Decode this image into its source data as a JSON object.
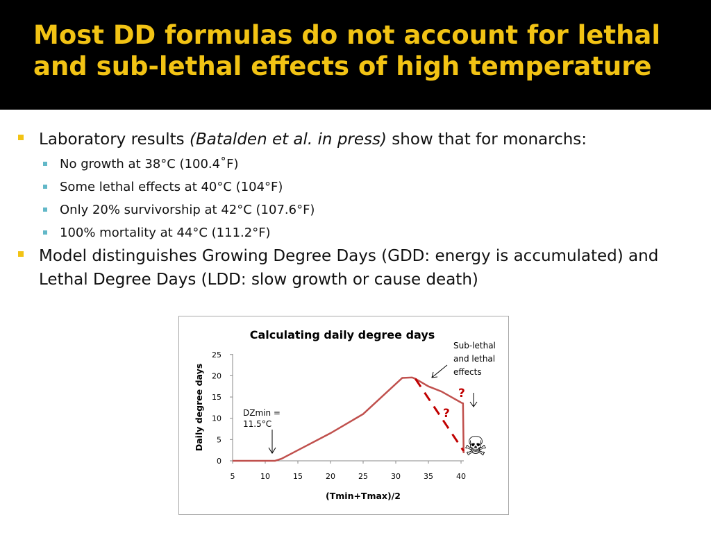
{
  "slide": {
    "title": "Most DD formulas do not account for lethal and sub-lethal effects of high temperature",
    "bullets": [
      {
        "pre": "Laboratory results ",
        "ital": "(Batalden et al. in press)",
        "post": " show that for monarchs:"
      },
      {
        "text": "Model distinguishes Growing Degree Days (GDD: energy is accumulated) and Lethal Degree Days (LDD: slow growth or cause death)"
      }
    ],
    "subbullets": [
      "No growth at 38°C (100.4˚F)",
      "Some lethal effects at 40°C (104°F)",
      "Only 20% survivorship at 42°C (107.6°F)",
      "100% mortality at 44°C (111.2°F)"
    ]
  },
  "chart_data": {
    "type": "line",
    "title": "Calculating daily degree days",
    "xlabel": "(Tmin+Tmax)/2",
    "ylabel": "Daily degree days",
    "xlim": [
      5,
      42
    ],
    "ylim": [
      0,
      25
    ],
    "xticks": [
      5,
      10,
      15,
      20,
      25,
      30,
      35,
      40
    ],
    "yticks": [
      0,
      5,
      10,
      15,
      20,
      25
    ],
    "grid": false,
    "series": [
      {
        "color": "#c0504d",
        "style": "solid",
        "points": [
          [
            5,
            0
          ],
          [
            11.5,
            0
          ],
          [
            12.5,
            0.5
          ],
          [
            15,
            2.5
          ],
          [
            20,
            6.5
          ],
          [
            25,
            11
          ],
          [
            31,
            19.5
          ],
          [
            32.5,
            19.6
          ],
          [
            33,
            19.3
          ],
          [
            35,
            17.5
          ],
          [
            37,
            16.3
          ],
          [
            40,
            13.7
          ],
          [
            40.3,
            13.5
          ],
          [
            40.4,
            1.8
          ]
        ]
      },
      {
        "color": "#c00000",
        "style": "dashed",
        "points": [
          [
            33,
            19.3
          ],
          [
            40.4,
            2.3
          ]
        ]
      }
    ],
    "annotations": {
      "dzmin": "DZmin =\n11.5°C",
      "sublethal": "Sub-lethal\nand lethal\neffects",
      "question_1": "?",
      "question_2": "?",
      "death_symbol": "☠"
    },
    "colors": {
      "series": "#c0504d",
      "dashed": "#c00000",
      "question": "#c00000"
    }
  }
}
